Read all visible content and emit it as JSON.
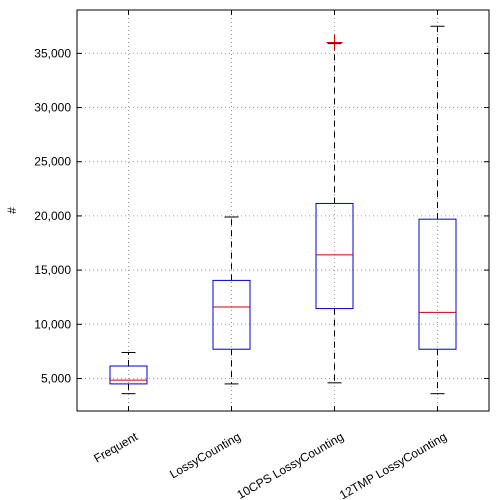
{
  "chart_data": {
    "type": "boxplot",
    "title": "",
    "xlabel": "",
    "ylabel": "#",
    "ylim": [
      2000,
      39000
    ],
    "yticks": [
      5000,
      10000,
      15000,
      20000,
      25000,
      30000,
      35000
    ],
    "ytick_labels": [
      "5,000",
      "10,000",
      "15,000",
      "20,000",
      "25,000",
      "30,000",
      "35,000"
    ],
    "grid": true,
    "categories": [
      "Frequent",
      "LossyCounting",
      "10CPS LossyCounting",
      "12TMP LossyCounting"
    ],
    "boxes": [
      {
        "category": "Frequent",
        "whisker_low": 3600,
        "q1": 4500,
        "median": 4850,
        "q3": 6150,
        "whisker_high": 7400,
        "outliers": []
      },
      {
        "category": "LossyCounting",
        "whisker_low": 4500,
        "q1": 7700,
        "median": 11600,
        "q3": 14050,
        "whisker_high": 19900,
        "outliers": []
      },
      {
        "category": "10CPS LossyCounting",
        "whisker_low": 4600,
        "q1": 11450,
        "median": 16400,
        "q3": 21150,
        "whisker_high": 35900,
        "outliers": [
          36000
        ]
      },
      {
        "category": "12TMP LossyCounting",
        "whisker_low": 3600,
        "q1": 7700,
        "median": 11100,
        "q3": 19700,
        "whisker_high": 37500,
        "outliers": []
      }
    ],
    "colors": {
      "box": "#0000cc",
      "median": "#cc0000",
      "outlier": "#cc0000",
      "whisker": "#000000",
      "grid": "#999999"
    }
  }
}
